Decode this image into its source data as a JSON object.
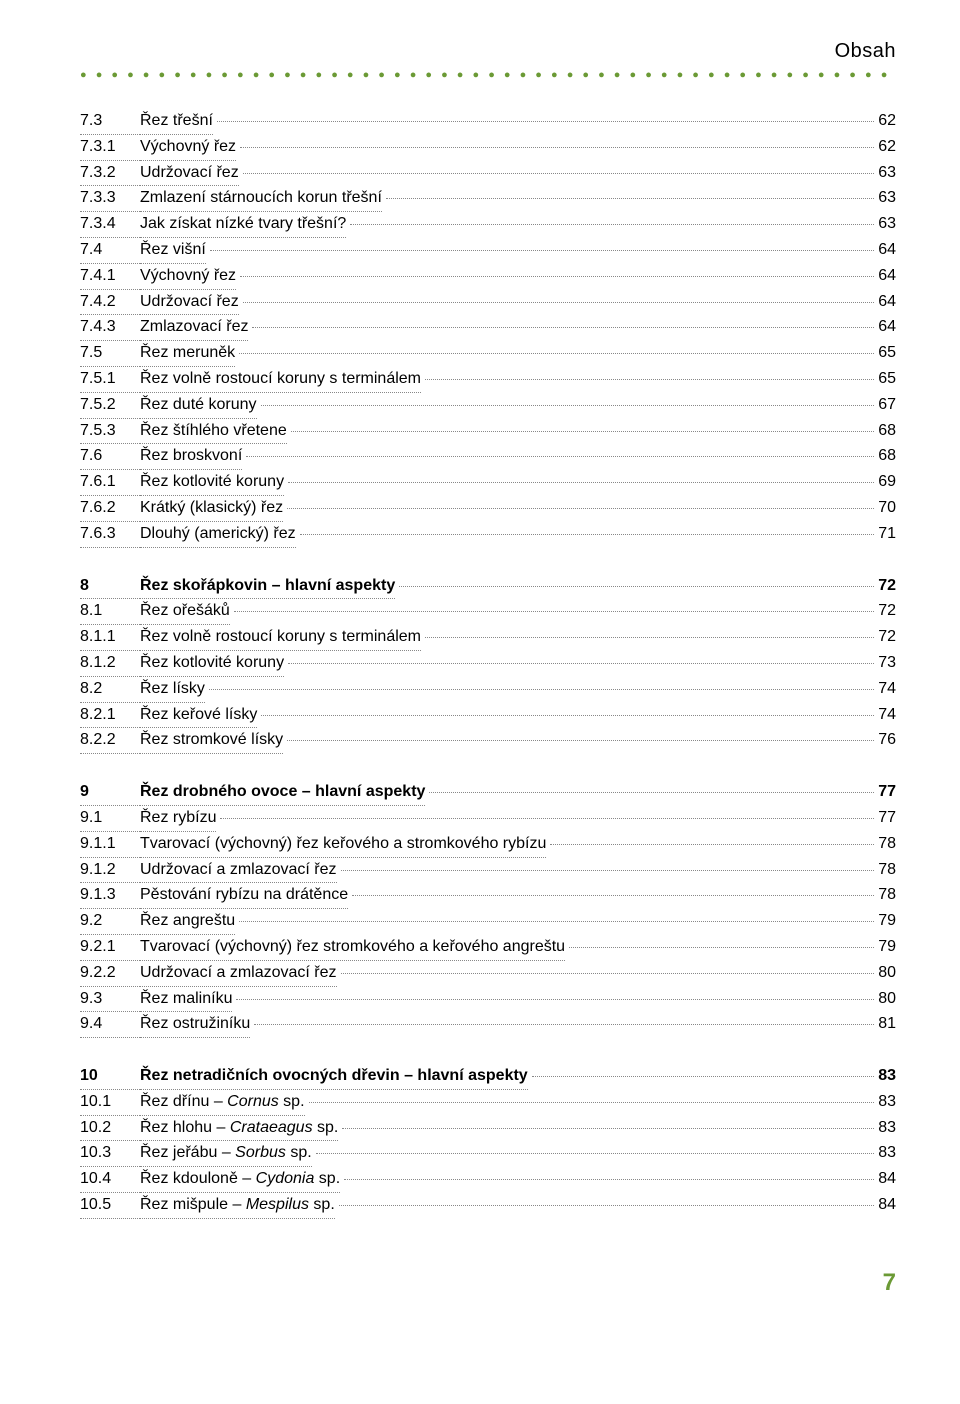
{
  "header": {
    "title": "Obsah"
  },
  "colors": {
    "accent": "#6b9a35",
    "text": "#000000",
    "dots": "#888888",
    "background": "#ffffff"
  },
  "typography": {
    "base_fontsize_pt": 12,
    "header_fontsize_pt": 15,
    "page_number_fontsize_pt": 18,
    "font_family": "Helvetica"
  },
  "divider": "● ● ● ● ● ● ● ● ● ● ● ● ● ● ● ● ● ● ● ● ● ● ● ● ● ● ● ● ● ● ● ● ● ● ● ● ● ● ● ● ● ● ● ● ● ● ● ● ● ● ● ● ● ● ● ● ● ● ● ● ● ● ● ● ● ● ● ●",
  "blocks": [
    [
      {
        "num": "7.3",
        "label": "Řez třešní",
        "page": "62",
        "bold": false
      },
      {
        "num": "7.3.1",
        "label": "Výchovný řez",
        "page": "62",
        "bold": false
      },
      {
        "num": "7.3.2",
        "label": "Udržovací řez",
        "page": "63",
        "bold": false
      },
      {
        "num": "7.3.3",
        "label": "Zmlazení stárnoucích korun třešní",
        "page": "63",
        "bold": false
      },
      {
        "num": "7.3.4",
        "label": "Jak získat nízké tvary třešní?",
        "page": "63",
        "bold": false
      },
      {
        "num": "7.4",
        "label": "Řez višní",
        "page": "64",
        "bold": false
      },
      {
        "num": "7.4.1",
        "label": "Výchovný řez",
        "page": "64",
        "bold": false
      },
      {
        "num": "7.4.2",
        "label": "Udržovací řez",
        "page": "64",
        "bold": false
      },
      {
        "num": "7.4.3",
        "label": "Zmlazovací řez",
        "page": "64",
        "bold": false
      },
      {
        "num": "7.5",
        "label": "Řez meruněk",
        "page": "65",
        "bold": false
      },
      {
        "num": "7.5.1",
        "label": "Řez volně rostoucí koruny s terminálem",
        "page": "65",
        "bold": false
      },
      {
        "num": "7.5.2",
        "label": "Řez duté koruny",
        "page": "67",
        "bold": false
      },
      {
        "num": "7.5.3",
        "label": "Řez štíhlého vřetene",
        "page": "68",
        "bold": false
      },
      {
        "num": "7.6",
        "label": "Řez broskvoní",
        "page": "68",
        "bold": false
      },
      {
        "num": "7.6.1",
        "label": "Řez kotlovité koruny",
        "page": "69",
        "bold": false
      },
      {
        "num": "7.6.2",
        "label": "Krátký (klasický) řez",
        "page": "70",
        "bold": false
      },
      {
        "num": "7.6.3",
        "label": "Dlouhý (americký) řez",
        "page": "71",
        "bold": false
      }
    ],
    [
      {
        "num": "8",
        "label": "Řez skořápkovin – hlavní aspekty",
        "page": "72",
        "bold": true
      },
      {
        "num": "8.1",
        "label": "Řez ořešáků",
        "page": "72",
        "bold": false
      },
      {
        "num": "8.1.1",
        "label": "Řez volně rostoucí koruny s terminálem",
        "page": "72",
        "bold": false
      },
      {
        "num": "8.1.2",
        "label": "Řez kotlovité koruny",
        "page": "73",
        "bold": false
      },
      {
        "num": "8.2",
        "label": "Řez lísky",
        "page": "74",
        "bold": false
      },
      {
        "num": "8.2.1",
        "label": "Řez keřové lísky",
        "page": "74",
        "bold": false
      },
      {
        "num": "8.2.2",
        "label": "Řez stromkové lísky",
        "page": "76",
        "bold": false
      }
    ],
    [
      {
        "num": "9",
        "label": "Řez drobného ovoce – hlavní aspekty",
        "page": "77",
        "bold": true
      },
      {
        "num": "9.1",
        "label": "Řez rybízu",
        "page": "77",
        "bold": false
      },
      {
        "num": "9.1.1",
        "label": "Tvarovací (výchovný) řez keřového a stromkového rybízu",
        "page": "78",
        "bold": false
      },
      {
        "num": "9.1.2",
        "label": "Udržovací a zmlazovací řez",
        "page": "78",
        "bold": false
      },
      {
        "num": "9.1.3",
        "label": "Pěstování rybízu na drátěnce",
        "page": "78",
        "bold": false
      },
      {
        "num": "9.2",
        "label": "Řez angreštu",
        "page": "79",
        "bold": false
      },
      {
        "num": "9.2.1",
        "label": "Tvarovací (výchovný) řez stromkového a keřového angreštu",
        "page": "79",
        "bold": false
      },
      {
        "num": "9.2.2",
        "label": "Udržovací a zmlazovací řez",
        "page": "80",
        "bold": false
      },
      {
        "num": "9.3",
        "label": "Řez maliníku",
        "page": "80",
        "bold": false
      },
      {
        "num": "9.4",
        "label": "Řez ostružiníku",
        "page": "81",
        "bold": false
      }
    ],
    [
      {
        "num": "10",
        "label": "Řez netradičních ovocných dřevin – hlavní aspekty",
        "page": "83",
        "bold": true
      },
      {
        "num": "10.1",
        "label_pre": "Řez dřínu – ",
        "label_italic": "Cornus",
        "label_post": " sp.",
        "page": "83",
        "bold": false
      },
      {
        "num": "10.2",
        "label_pre": "Řez hlohu – ",
        "label_italic": "Crataeagus",
        "label_post": " sp.",
        "page": "83",
        "bold": false
      },
      {
        "num": "10.3",
        "label_pre": "Řez jeřábu – ",
        "label_italic": "Sorbus",
        "label_post": " sp.",
        "page": "83",
        "bold": false
      },
      {
        "num": "10.4",
        "label_pre": "Řez kdouloně – ",
        "label_italic": "Cydonia",
        "label_post": " sp.",
        "page": "84",
        "bold": false
      },
      {
        "num": "10.5",
        "label_pre": "Řez mišpule – ",
        "label_italic": "Mespilus",
        "label_post": " sp.",
        "page": "84",
        "bold": false
      }
    ]
  ],
  "page_number": "7"
}
